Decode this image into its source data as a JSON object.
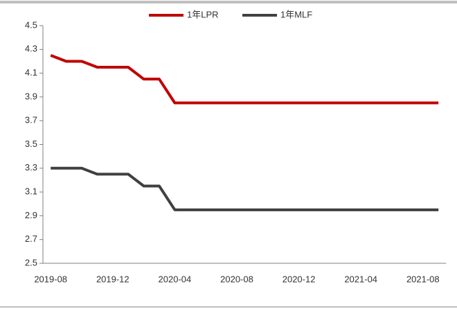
{
  "chart_data": {
    "type": "line",
    "categories": [
      "2019-08",
      null,
      null,
      null,
      "2019-12",
      null,
      null,
      null,
      "2020-04",
      null,
      null,
      null,
      "2020-08",
      null,
      null,
      null,
      "2020-12",
      null,
      null,
      null,
      "2021-04",
      null,
      null,
      null,
      "2021-08",
      null
    ],
    "series": [
      {
        "name": "1年LPR",
        "color": "#c00000",
        "values": [
          4.25,
          4.2,
          4.2,
          4.15,
          4.15,
          4.15,
          4.05,
          4.05,
          3.85,
          3.85,
          3.85,
          3.85,
          3.85,
          3.85,
          3.85,
          3.85,
          3.85,
          3.85,
          3.85,
          3.85,
          3.85,
          3.85,
          3.85,
          3.85,
          3.85,
          3.85
        ]
      },
      {
        "name": "1年MLF",
        "color": "#404040",
        "values": [
          3.3,
          3.3,
          3.3,
          3.25,
          3.25,
          3.25,
          3.15,
          3.15,
          2.95,
          2.95,
          2.95,
          2.95,
          2.95,
          2.95,
          2.95,
          2.95,
          2.95,
          2.95,
          2.95,
          2.95,
          2.95,
          2.95,
          2.95,
          2.95,
          2.95,
          2.95
        ]
      }
    ],
    "ylim": [
      2.5,
      4.5
    ],
    "yticks": [
      2.5,
      2.7,
      2.9,
      3.1,
      3.3,
      3.5,
      3.7,
      3.9,
      4.1,
      4.3,
      4.5
    ],
    "grid": false,
    "legend": "top"
  }
}
